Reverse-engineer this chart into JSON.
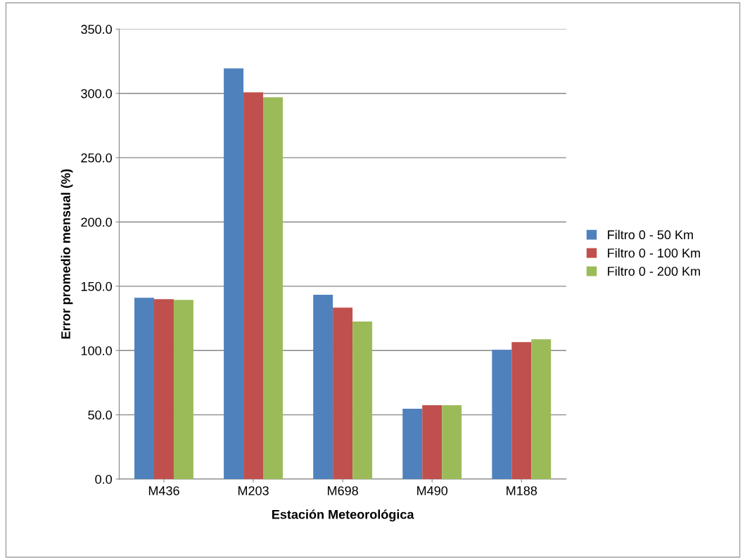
{
  "chart_data": {
    "type": "bar",
    "xlabel": "Estación Meteorológica",
    "ylabel": "Error promedio mensual (%)",
    "categories": [
      "M436",
      "M203",
      "M698",
      "M490",
      "M188"
    ],
    "series": [
      {
        "name": "Filtro 0 - 50 Km",
        "color": "#4f81bd",
        "values": [
          141.1,
          319.4,
          143.3,
          54.7,
          100.6
        ]
      },
      {
        "name": "Filtro 0 - 100 Km",
        "color": "#c0504d",
        "values": [
          140.0,
          300.8,
          133.4,
          57.4,
          106.6
        ]
      },
      {
        "name": "Filtro 0 - 200 Km",
        "color": "#9bbb59",
        "values": [
          139.4,
          297.0,
          122.5,
          57.4,
          108.8
        ]
      }
    ],
    "ylim": [
      0,
      350
    ],
    "yticks": [
      {
        "value": 0,
        "label": "0.0"
      },
      {
        "value": 50,
        "label": "50.0"
      },
      {
        "value": 100,
        "label": "100.0"
      },
      {
        "value": 150,
        "label": "150.0"
      },
      {
        "value": 200,
        "label": "200.0"
      },
      {
        "value": 250,
        "label": "250.0"
      },
      {
        "value": 300,
        "label": "300.0"
      },
      {
        "value": 350,
        "label": "350.0"
      }
    ],
    "grid": "y",
    "legend": "right"
  }
}
